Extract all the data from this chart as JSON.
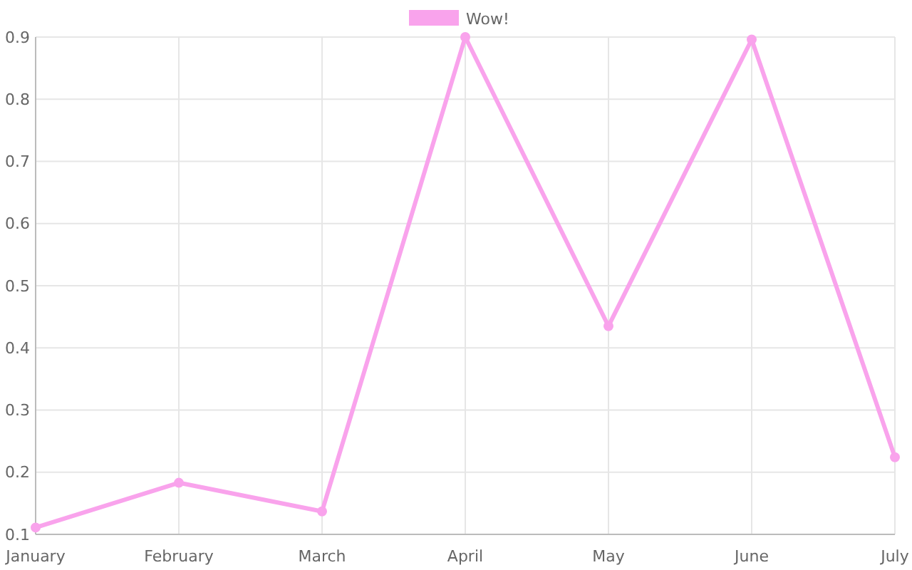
{
  "chart_data": {
    "type": "line",
    "categories": [
      "January",
      "February",
      "March",
      "April",
      "May",
      "June",
      "July"
    ],
    "series": [
      {
        "name": "Wow!",
        "color": "#f9a3ec",
        "values": [
          0.111,
          0.183,
          0.137,
          0.9,
          0.435,
          0.896,
          0.224
        ]
      }
    ],
    "ylim": [
      0.1,
      0.9
    ],
    "yticks": [
      0.1,
      0.2,
      0.3,
      0.4,
      0.5,
      0.6,
      0.7,
      0.8,
      0.9
    ],
    "grid": true,
    "legend": "top",
    "marker": "circle",
    "line_style": "solid"
  }
}
